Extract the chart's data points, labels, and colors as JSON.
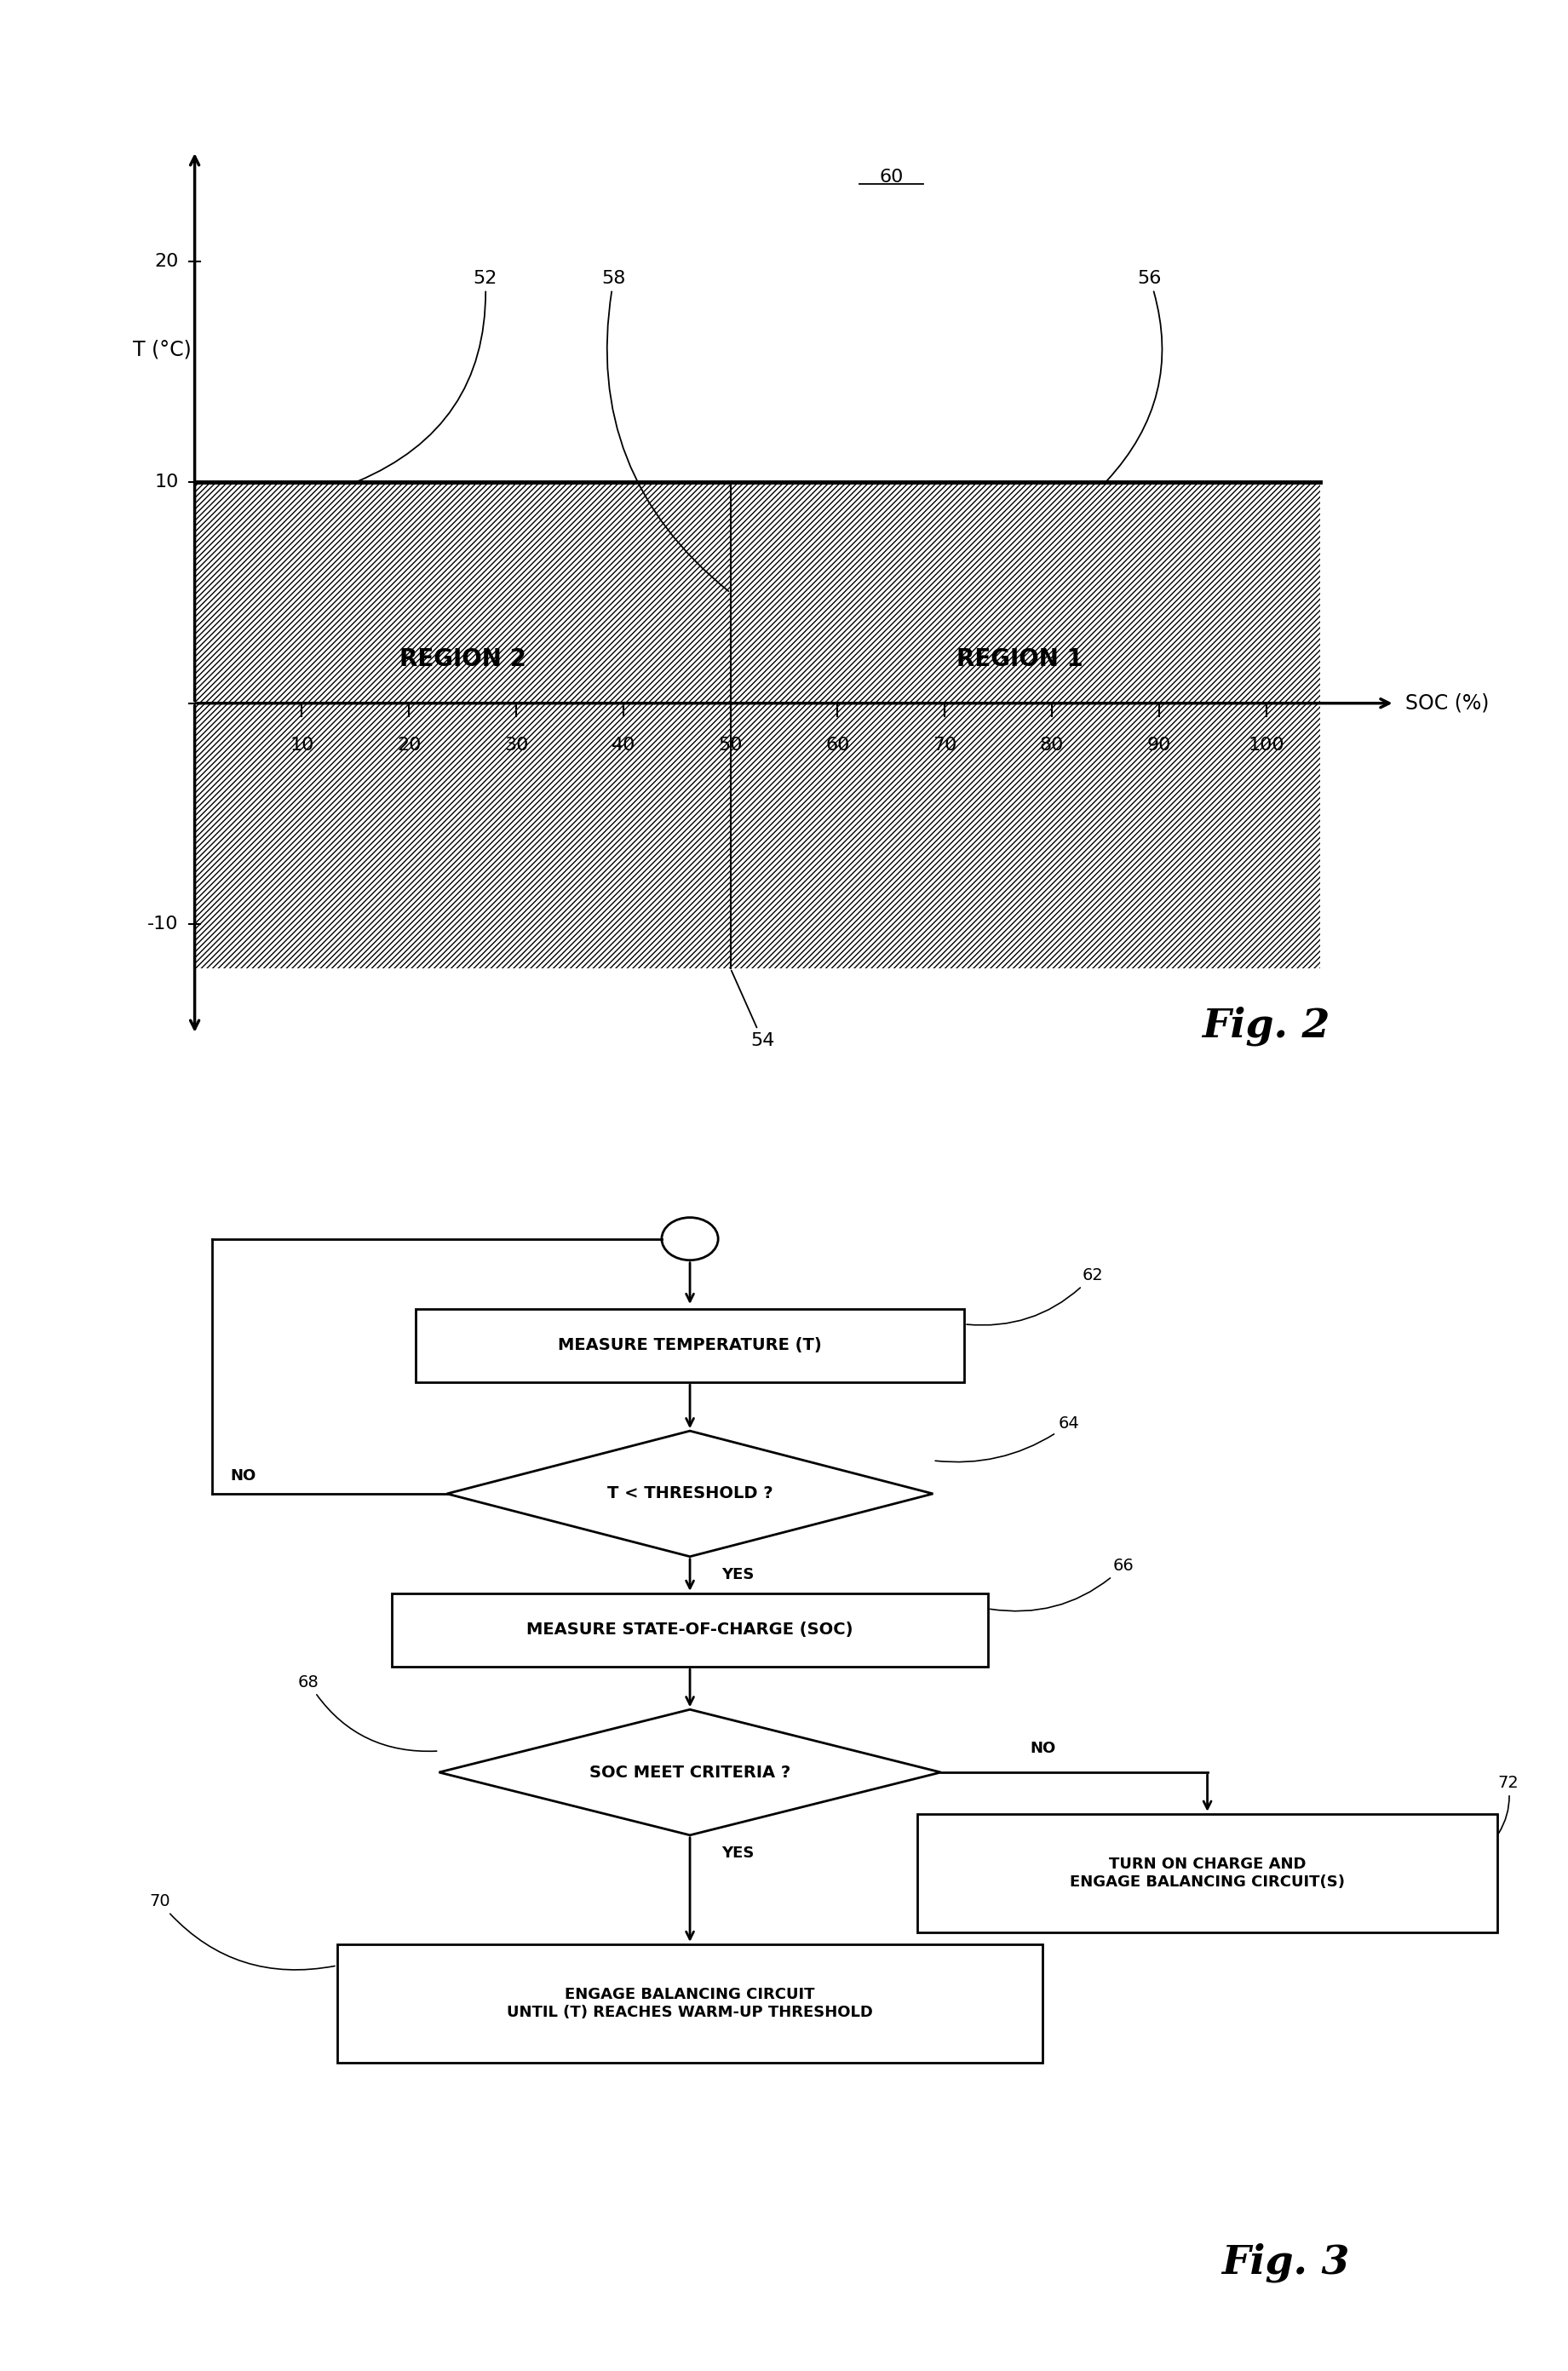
{
  "background_color": "#ffffff",
  "fig2": {
    "xlabel": "SOC (%)",
    "ylabel": "T (°C)",
    "xlim": [
      -5,
      115
    ],
    "ylim": [
      -17,
      27
    ],
    "hatch_ymin": -12,
    "hatch_ymax": 10,
    "temp_ticks": [
      -10,
      0,
      10,
      20
    ],
    "soc_ticks": [
      10,
      20,
      30,
      40,
      50,
      60,
      70,
      80,
      90,
      100
    ],
    "region1_label": "REGION 1",
    "region2_label": "REGION 2",
    "label_52": "52",
    "label_54": "54",
    "label_56": "56",
    "label_58": "58",
    "label_60": "60",
    "fig_label": "Fig. 2"
  },
  "fig3": {
    "box_measure_temp": "MEASURE TEMPERATURE (T)",
    "box_threshold": "T < THRESHOLD ?",
    "box_measure_soc": "MEASURE STATE-OF-CHARGE (SOC)",
    "box_soc_criteria": "SOC MEET CRITERIA ?",
    "box_engage": "ENGAGE BALANCING CIRCUIT\nUNTIL (T) REACHES WARM-UP THRESHOLD",
    "box_turn_on": "TURN ON CHARGE AND\nENGAGE BALANCING CIRCUIT(S)",
    "label_62": "62",
    "label_64": "64",
    "label_66": "66",
    "label_68": "68",
    "label_70": "70",
    "label_72": "72",
    "yes_label": "YES",
    "no_label": "NO",
    "fig_label": "Fig. 3"
  }
}
